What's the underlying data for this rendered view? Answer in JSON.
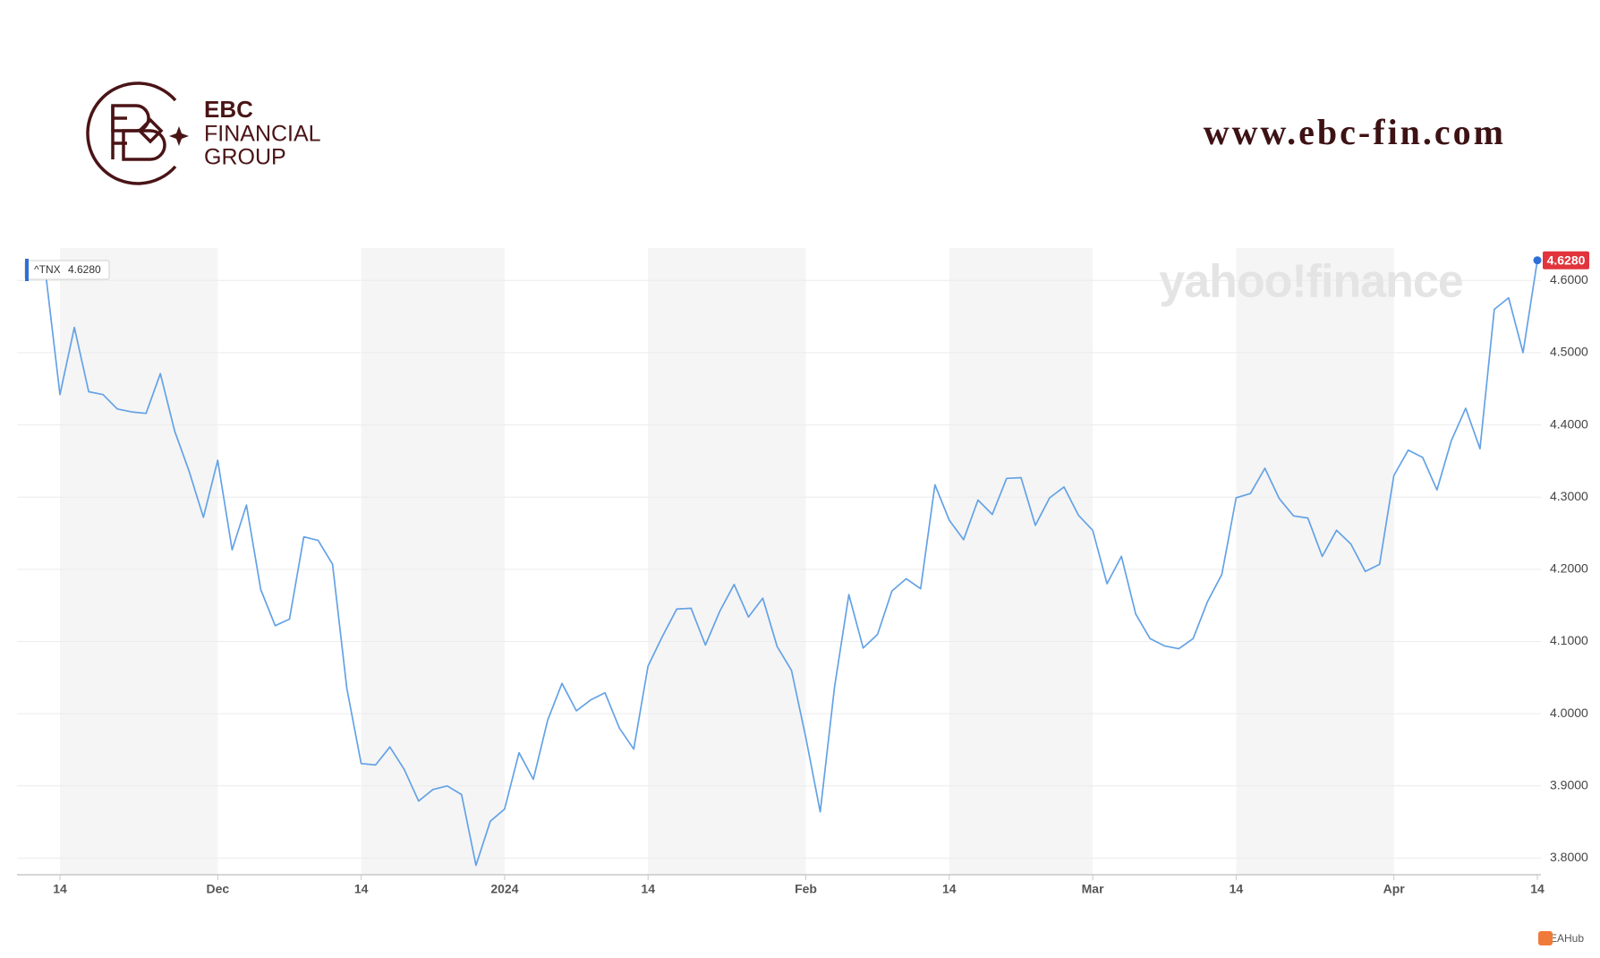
{
  "branding": {
    "logo_line1": "EBC",
    "logo_line2": "FINANCIAL",
    "logo_line3": "GROUP",
    "url": "www.ebc-fin.com",
    "watermark": "yahoo!finance",
    "footer": "EAHub"
  },
  "chart_data": {
    "type": "line",
    "categories": [
      null,
      "14",
      null,
      null,
      null,
      null,
      null,
      null,
      null,
      null,
      null,
      null,
      "Dec",
      null,
      null,
      null,
      null,
      null,
      null,
      null,
      null,
      null,
      "14",
      null,
      null,
      null,
      null,
      null,
      null,
      null,
      null,
      null,
      "2024",
      null,
      null,
      null,
      null,
      null,
      null,
      null,
      null,
      null,
      "14",
      null,
      null,
      null,
      null,
      null,
      null,
      null,
      null,
      null,
      null,
      "Feb",
      null,
      null,
      null,
      null,
      null,
      null,
      null,
      null,
      null,
      "14",
      null,
      null,
      null,
      null,
      null,
      null,
      null,
      null,
      null,
      "Mar",
      null,
      null,
      null,
      null,
      null,
      null,
      null,
      null,
      null,
      "14",
      null,
      null,
      null,
      null,
      null,
      null,
      null,
      null,
      null,
      null,
      "Apr",
      null,
      null,
      null,
      null,
      null,
      null,
      null,
      null,
      null,
      "14"
    ],
    "series": [
      {
        "name": "^TNX",
        "color": "#64a2e6",
        "values": [
          4.61,
          4.442,
          4.535,
          4.446,
          4.442,
          4.422,
          4.418,
          4.416,
          4.471,
          4.391,
          4.336,
          4.272,
          4.351,
          4.227,
          4.289,
          4.172,
          4.122,
          4.131,
          4.245,
          4.24,
          4.207,
          4.035,
          3.931,
          3.929,
          3.954,
          3.923,
          3.879,
          3.895,
          3.9,
          3.888,
          3.79,
          3.851,
          3.868,
          3.946,
          3.909,
          3.991,
          4.042,
          4.004,
          4.019,
          4.029,
          3.98,
          3.951,
          4.066,
          4.107,
          4.145,
          4.146,
          4.095,
          4.142,
          4.179,
          4.134,
          4.16,
          4.093,
          4.06,
          3.967,
          3.864,
          4.037,
          4.165,
          4.091,
          4.11,
          4.17,
          4.187,
          4.173,
          4.317,
          4.268,
          4.241,
          4.296,
          4.276,
          4.326,
          4.327,
          4.261,
          4.299,
          4.314,
          4.275,
          4.254,
          4.18,
          4.218,
          4.138,
          4.104,
          4.094,
          4.09,
          4.104,
          4.155,
          4.193,
          4.299,
          4.305,
          4.34,
          4.298,
          4.274,
          4.271,
          4.218,
          4.254,
          4.235,
          4.197,
          4.207,
          4.33,
          4.365,
          4.355,
          4.31,
          4.378,
          4.423,
          4.367,
          4.56,
          4.576,
          4.5,
          4.628
        ]
      }
    ],
    "current_value": {
      "value": 4.628,
      "label": "4.6280"
    },
    "current_color": "#e2343c",
    "ylim": [
      3.777,
      4.645
    ],
    "yticks": [
      {
        "value": 3.8,
        "label": "3.8000"
      },
      {
        "value": 3.9,
        "label": "3.9000"
      },
      {
        "value": 4.0,
        "label": "4.0000"
      },
      {
        "value": 4.1,
        "label": "4.1000"
      },
      {
        "value": 4.2,
        "label": "4.2000"
      },
      {
        "value": 4.3,
        "label": "4.3000"
      },
      {
        "value": 4.4,
        "label": "4.4000"
      },
      {
        "value": 4.5,
        "label": "4.5000"
      },
      {
        "value": 4.6,
        "label": "4.6000"
      }
    ],
    "grid": true,
    "legend": "top-left"
  }
}
